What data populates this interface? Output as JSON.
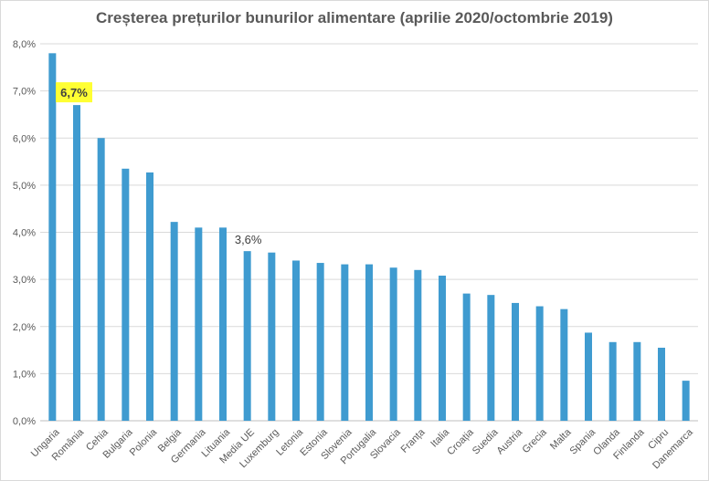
{
  "chart_data": {
    "type": "bar",
    "title": "Creșterea prețurilor bunurilor alimentare (aprilie 2020/octombrie 2019)",
    "xlabel": "",
    "ylabel": "",
    "ylim": [
      0,
      8
    ],
    "y_ticks": [
      "0,0%",
      "1,0%",
      "2,0%",
      "3,0%",
      "4,0%",
      "5,0%",
      "6,0%",
      "7,0%",
      "8,0%"
    ],
    "grid": true,
    "bar_color": "#3f9bd0",
    "highlight_color": "#ffff33",
    "categories": [
      "Ungaria",
      "România",
      "Cehia",
      "Bulgaria",
      "Polonia",
      "Belgia",
      "Germania",
      "Lituania",
      "Media UE",
      "Luxemburg",
      "Letonia",
      "Estonia",
      "Slovenia",
      "Portugalia",
      "Slovacia",
      "Franța",
      "Italia",
      "Croația",
      "Suedia",
      "Austria",
      "Grecia",
      "Malta",
      "Spania",
      "Olanda",
      "Finlanda",
      "Cipru",
      "Danemarca"
    ],
    "values": [
      7.8,
      6.7,
      6.0,
      5.35,
      5.27,
      4.22,
      4.1,
      4.1,
      3.6,
      3.57,
      3.4,
      3.35,
      3.32,
      3.32,
      3.25,
      3.2,
      3.08,
      2.7,
      2.67,
      2.5,
      2.43,
      2.37,
      1.87,
      1.67,
      1.67,
      1.55,
      0.85
    ],
    "data_labels": [
      {
        "category": "România",
        "text": "6,7%",
        "highlight": true
      },
      {
        "category": "Media UE",
        "text": "3,6%",
        "highlight": false
      }
    ]
  }
}
